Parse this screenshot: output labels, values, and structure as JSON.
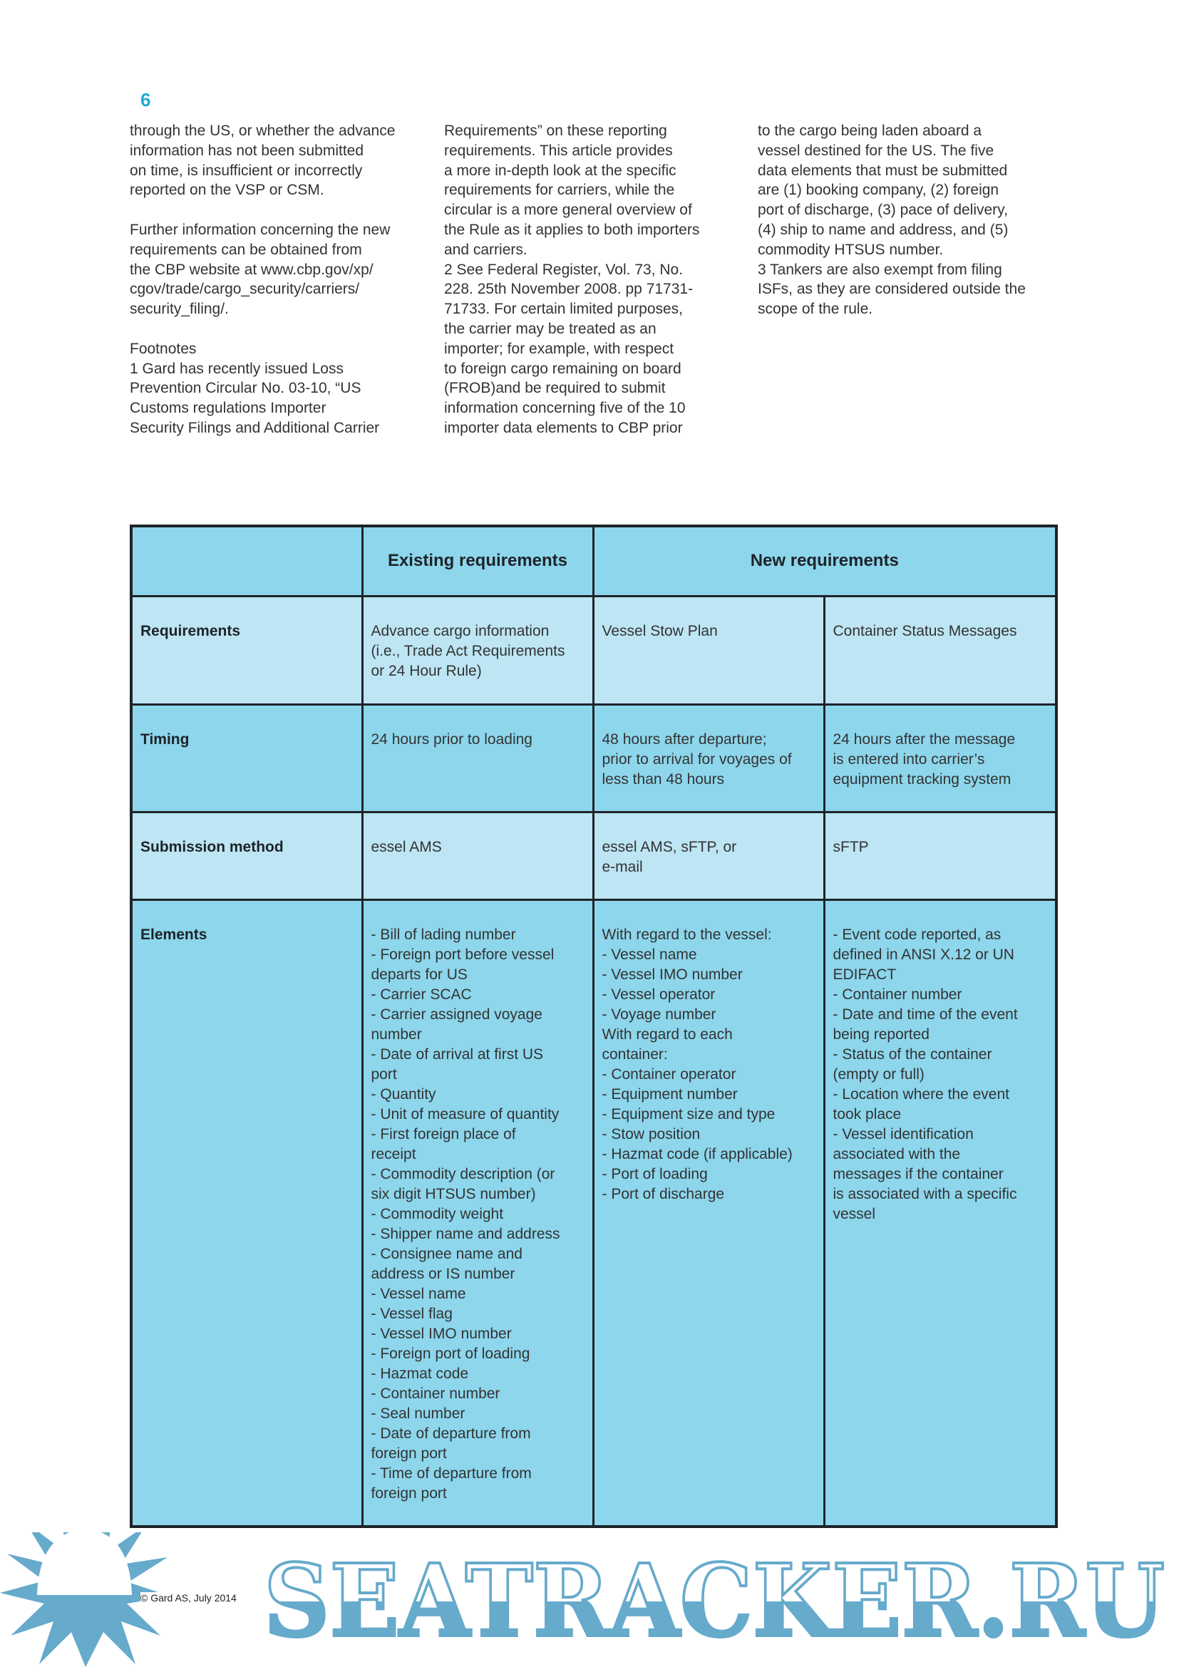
{
  "page_number": "6",
  "columns": [
    "through the US, or whether the advance\ninformation has not been submitted\non time, is insufficient or incorrectly\nreported on the VSP or CSM.\n\nFurther information concerning the new\nrequirements can be obtained from\nthe CBP website at www.cbp.gov/xp/\ncgov/trade/cargo_security/carriers/\nsecurity_filing/.\n\nFootnotes\n1 Gard has recently issued Loss\nPrevention Circular No. 03-10, “US\nCustoms regulations Importer\nSecurity Filings and Additional Carrier",
    "Requirements” on these reporting\nrequirements. This article provides\na more in-depth look at the specific\nrequirements for carriers, while the\ncircular is a more general overview of\nthe Rule as it applies to both importers\nand carriers.\n2  See Federal Register, Vol. 73, No.\n228. 25th November 2008. pp 71731-\n71733.  For certain limited purposes,\nthe carrier may be treated as an\nimporter; for example, with respect\nto foreign cargo remaining on board\n(FROB)and be required to submit\ninformation concerning five of the 10\nimporter data elements to CBP prior",
    "to the cargo being laden aboard a\nvessel destined for the US.  The five\ndata elements that must be submitted\nare (1) booking company, (2) foreign\nport of discharge, (3) pace of delivery,\n(4) ship to name and address, and (5)\ncommodity HTSUS number.\n3 Tankers are also exempt from filing\nISFs, as they are considered outside the\nscope of the rule."
  ],
  "table": {
    "headers": {
      "existing": "Existing requirements",
      "new": "New requirements"
    },
    "rows": [
      {
        "label": "Requirements",
        "cells": [
          "Advance cargo information\n(i.e., Trade Act Requirements\nor 24 Hour Rule)",
          "Vessel Stow Plan",
          "Container Status Messages"
        ]
      },
      {
        "label": "Timing",
        "cells": [
          "24 hours prior to loading",
          "48 hours after departure;\nprior to arrival for voyages of\nless than 48 hours",
          "24 hours after the message\nis entered into carrier’s\nequipment tracking system"
        ]
      },
      {
        "label": "Submission method",
        "cells": [
          "essel AMS",
          "essel AMS, sFTP, or\ne-mail",
          "sFTP"
        ]
      },
      {
        "label": "Elements",
        "cells": [
          "- Bill of lading number\n- Foreign port before vessel\ndeparts for US\n- Carrier SCAC\n- Carrier assigned voyage\nnumber\n- Date of arrival at first US\nport\n- Quantity\n- Unit of measure of quantity\n- First foreign place of\nreceipt\n- Commodity description (or\nsix digit HTSUS number)\n- Commodity weight\n- Shipper name and address\n- Consignee name and\naddress or IS number\n- Vessel name\n- Vessel flag\n- Vessel IMO number\n- Foreign port of loading\n- Hazmat code\n- Container number\n- Seal number\n- Date of departure from\nforeign port\n- Time of departure from\nforeign port",
          "With regard to the vessel:\n- Vessel name\n- Vessel IMO number\n- Vessel operator\n- Voyage number\nWith regard to each\ncontainer:\n- Container operator\n- Equipment number\n- Equipment size and type\n- Stow position\n- Hazmat code (if applicable)\n- Port of loading\n- Port of discharge",
          "- Event code reported, as\ndefined in ANSI X.12 or UN\nEDIFACT\n- Container number\n- Date and time of the event\nbeing reported\n- Status of the container\n(empty or full)\n- Location where the event\ntook place\n- Vessel identification\nassociated with the\nmessages if the container\nis associated with a specific\nvessel"
        ]
      }
    ]
  },
  "copyright": "© Gard AS, July 2014",
  "watermark": {
    "text": "SEATRACKER.RU",
    "color": "#66aacc"
  },
  "colors": {
    "accent": "#1fa9d6",
    "header_bg": "#8dd6ec",
    "light_bg": "#bde5f3",
    "border": "#1e2328"
  }
}
